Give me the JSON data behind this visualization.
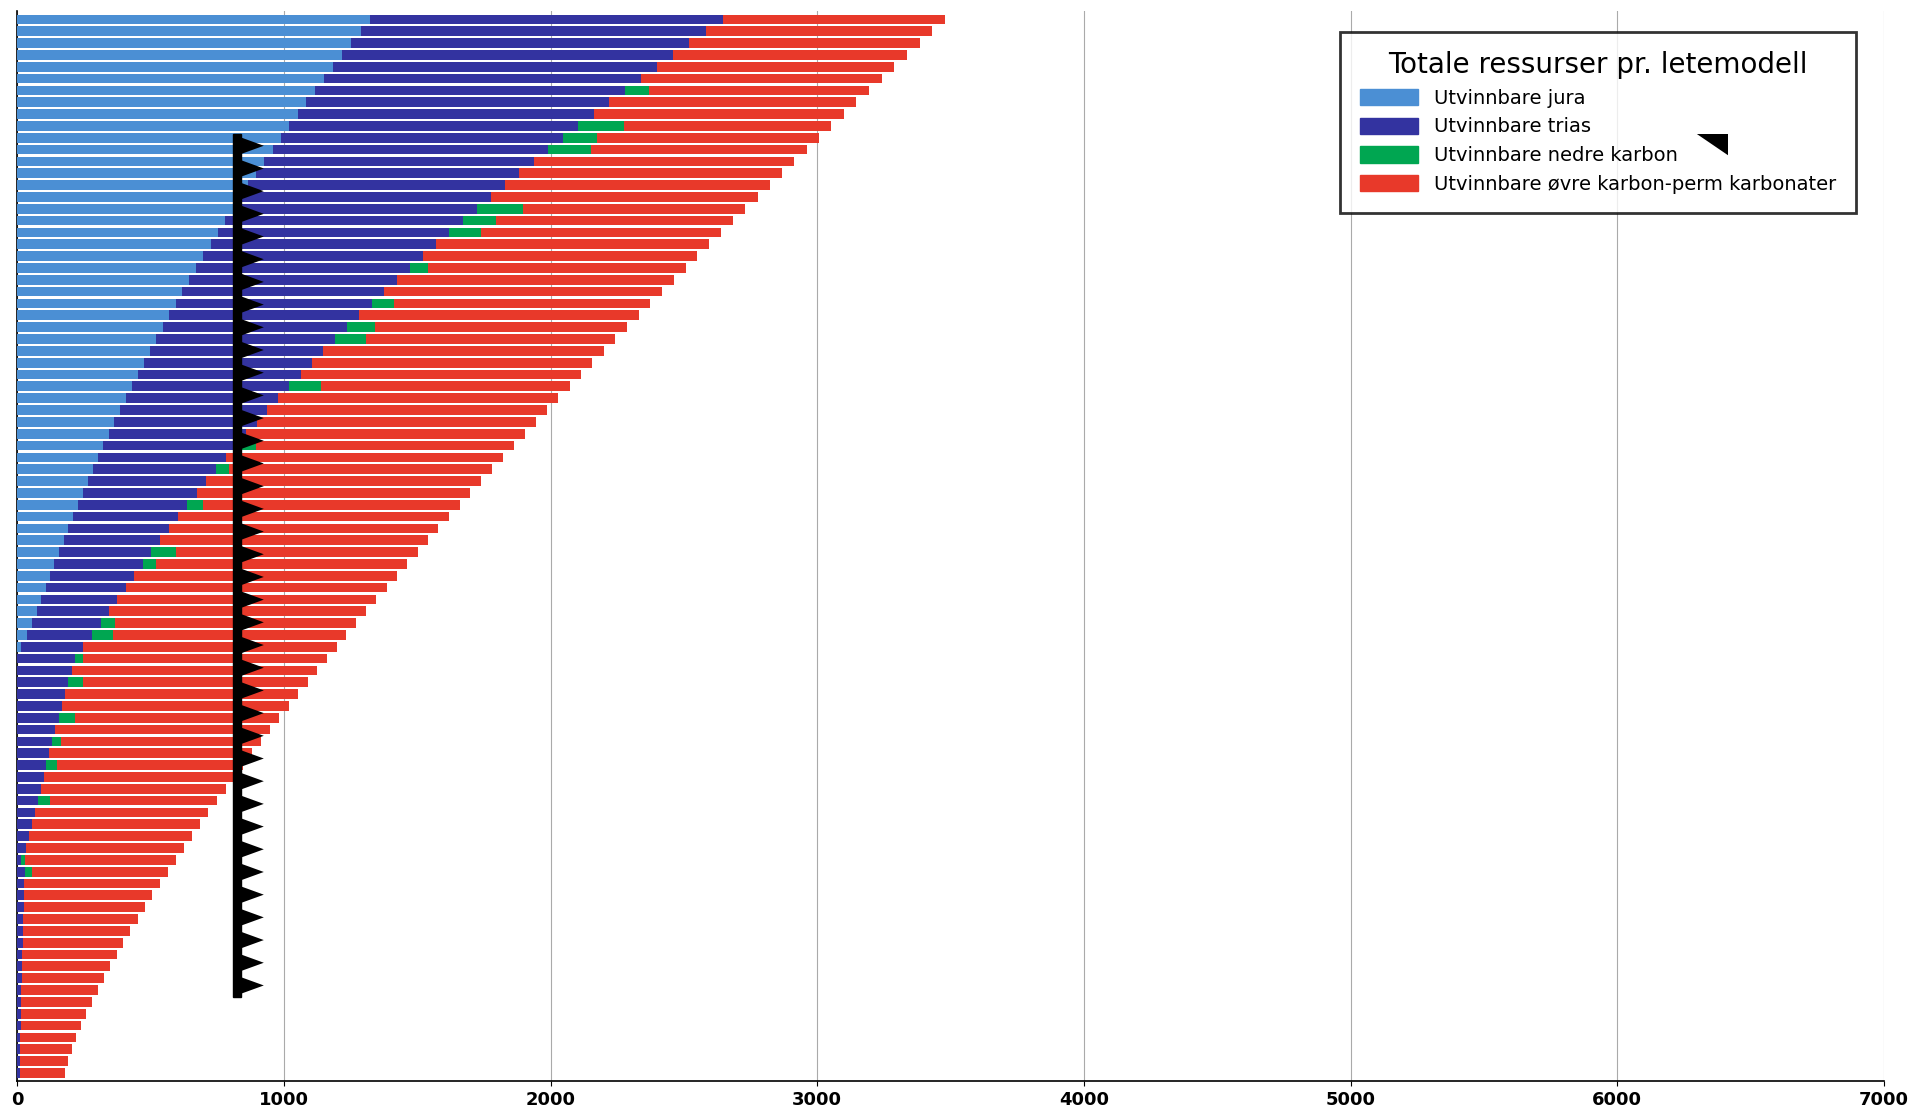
{
  "title": "Totale ressurser pr. letemodell",
  "legend_labels": [
    "Utvinnbare jura",
    "Utvinnbare trias",
    "Utvinnbare nedre karbon",
    "Utvinnbare øvre karbon-perm karbonater"
  ],
  "colors": [
    "#4B8FD4",
    "#3333A0",
    "#00A651",
    "#E8392A"
  ],
  "xlim": [
    0,
    7000
  ],
  "background_color": "#ffffff",
  "grid_color": "#aaaaaa",
  "n_bars": 90,
  "title_fontsize": 20,
  "legend_fontsize": 14,
  "xticks": [
    0,
    1000,
    2000,
    3000,
    4000,
    5000,
    6000,
    7000
  ]
}
